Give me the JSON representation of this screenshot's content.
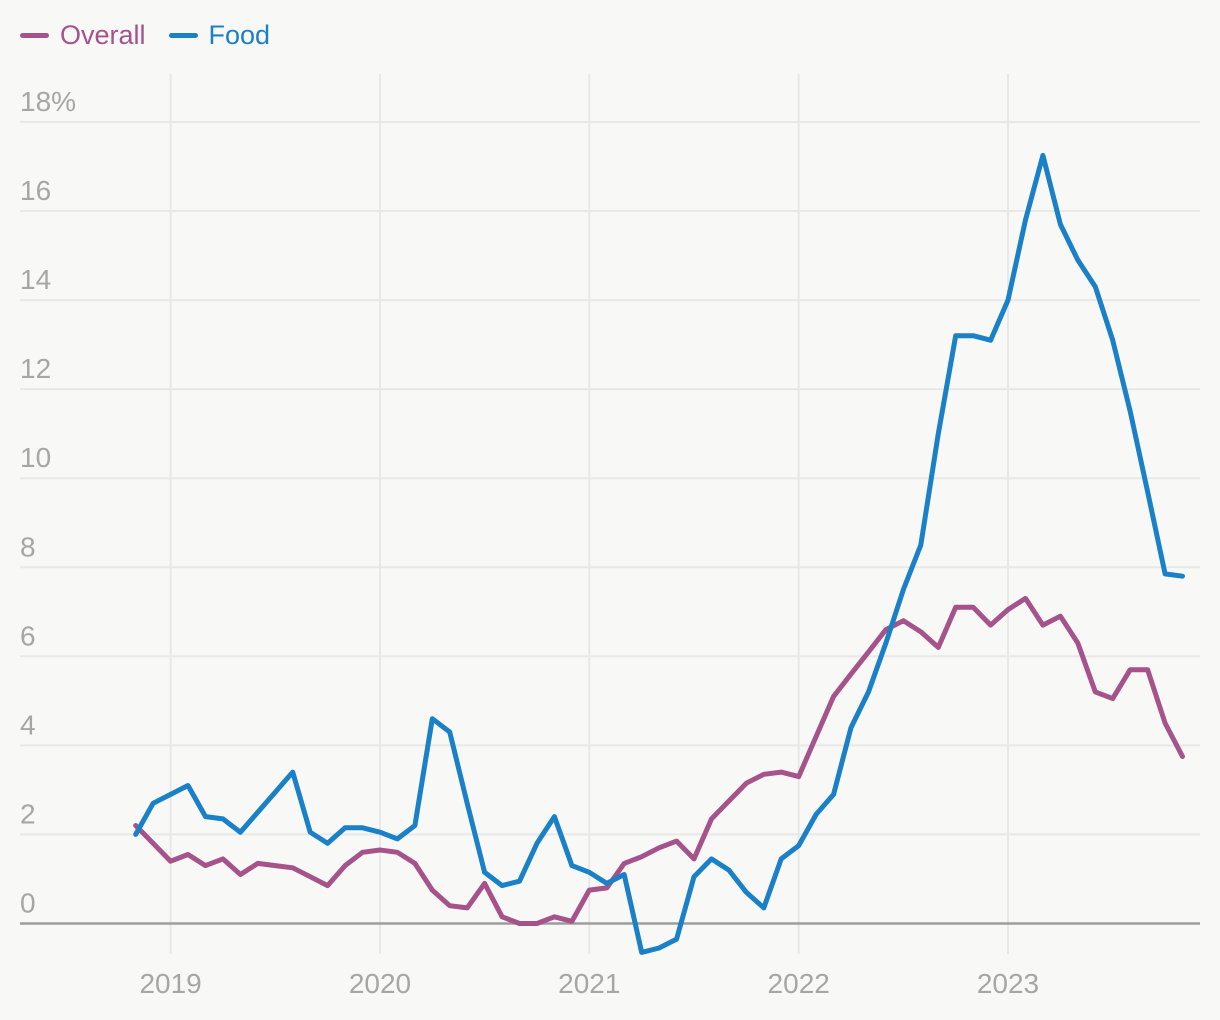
{
  "legend": {
    "items": [
      {
        "label": "Overall",
        "color": "#a6538b"
      },
      {
        "label": "Food",
        "color": "#1a80c8"
      }
    ]
  },
  "colors": {
    "background": "#f8f8f7",
    "gridline": "#e8e8e6",
    "zero_axis": "#9d9d9b",
    "tick_text": "#a6a6a4",
    "overall_line": "#a6538b",
    "food_line": "#1a80c8"
  },
  "chart_data": {
    "type": "line",
    "title": "",
    "frequency": "monthly",
    "x_start": "2018-11",
    "x_end": "2023-11",
    "grid": true,
    "legend_position": "top-left",
    "ylim": [
      -0.7,
      19.0
    ],
    "y_ticks": [
      {
        "value": 0,
        "label": "0"
      },
      {
        "value": 2,
        "label": "2"
      },
      {
        "value": 4,
        "label": "4"
      },
      {
        "value": 6,
        "label": "6"
      },
      {
        "value": 8,
        "label": "8"
      },
      {
        "value": 10,
        "label": "10"
      },
      {
        "value": 12,
        "label": "12"
      },
      {
        "value": 14,
        "label": "14"
      },
      {
        "value": 16,
        "label": "16"
      },
      {
        "value": 18,
        "label": "18%"
      }
    ],
    "x_ticks": [
      {
        "month_index": 2,
        "label": "2019"
      },
      {
        "month_index": 14,
        "label": "2020"
      },
      {
        "month_index": 26,
        "label": "2021"
      },
      {
        "month_index": 38,
        "label": "2022"
      },
      {
        "month_index": 50,
        "label": "2023"
      }
    ],
    "series": [
      {
        "name": "Overall",
        "color": "#a6538b",
        "values": [
          2.2,
          1.8,
          1.4,
          1.55,
          1.3,
          1.45,
          1.1,
          1.35,
          1.3,
          1.25,
          1.05,
          0.85,
          1.3,
          1.6,
          1.65,
          1.6,
          1.35,
          0.75,
          0.4,
          0.35,
          0.9,
          0.15,
          0.0,
          0.0,
          0.15,
          0.05,
          0.75,
          0.8,
          1.35,
          1.5,
          1.7,
          1.85,
          1.45,
          2.35,
          2.75,
          3.15,
          3.35,
          3.4,
          3.3,
          4.2,
          5.1,
          5.6,
          6.1,
          6.6,
          6.8,
          6.55,
          6.2,
          7.1,
          7.1,
          6.7,
          7.05,
          7.3,
          6.7,
          6.9,
          6.3,
          5.2,
          5.05,
          5.7,
          5.7,
          4.5,
          3.75
        ]
      },
      {
        "name": "Food",
        "color": "#1a80c8",
        "values": [
          2.0,
          2.7,
          2.9,
          3.1,
          2.4,
          2.35,
          2.05,
          2.5,
          2.95,
          3.4,
          2.05,
          1.8,
          2.15,
          2.15,
          2.05,
          1.9,
          2.2,
          4.6,
          4.3,
          2.7,
          1.15,
          0.85,
          0.95,
          1.8,
          2.4,
          1.3,
          1.15,
          0.9,
          1.1,
          -0.65,
          -0.55,
          -0.35,
          1.05,
          1.45,
          1.2,
          0.7,
          0.35,
          1.45,
          1.75,
          2.45,
          2.9,
          4.4,
          5.2,
          6.3,
          7.5,
          8.5,
          11.0,
          13.2,
          13.2,
          13.1,
          14.0,
          15.8,
          17.25,
          15.7,
          14.9,
          14.3,
          13.1,
          11.5,
          9.7,
          7.85,
          7.8
        ]
      }
    ]
  }
}
